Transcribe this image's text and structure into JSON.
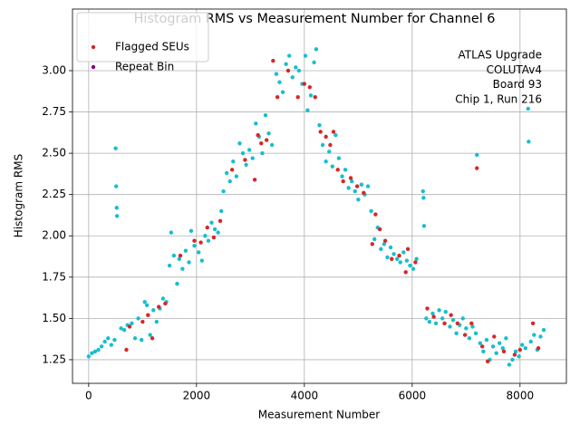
{
  "chart_data": {
    "type": "scatter",
    "title": "Histogram RMS vs Measurement Number for Channel 6",
    "xlabel": "Measurement Number",
    "ylabel": "Histogram RMS",
    "annotation": [
      "ATLAS Upgrade",
      "COLUTAv4",
      " Board 93",
      "Chip 1, Run 216"
    ],
    "xlim": [
      -300,
      8860
    ],
    "ylim": [
      1.107,
      3.373
    ],
    "xticks": [
      0,
      2000,
      4000,
      6000,
      8000
    ],
    "yticks": [
      1.25,
      {
        "value": 1.5,
        "label": "1.50"
      },
      1.75,
      {
        "value": 2.0,
        "label": "2.00"
      },
      2.25,
      {
        "value": 2.5,
        "label": "2.50"
      },
      2.75,
      {
        "value": 3.0,
        "label": "3.00"
      }
    ],
    "grid": true,
    "legend": "upper left",
    "series": [
      {
        "color": "#17becf",
        "x": [
          0,
          60,
          120,
          180,
          240,
          300,
          360,
          420,
          480,
          500,
          510,
          520,
          525,
          600,
          660,
          720,
          800,
          860,
          920,
          980,
          1040,
          1080,
          1140,
          1200,
          1260,
          1320,
          1380,
          1440,
          1500,
          1530,
          1580,
          1640,
          1680,
          1740,
          1800,
          1860,
          1900,
          1960,
          2040,
          2100,
          2160,
          2220,
          2280,
          2340,
          2400,
          2460,
          2500,
          2560,
          2620,
          2680,
          2740,
          2800,
          2860,
          2920,
          2980,
          3040,
          3100,
          3160,
          3220,
          3280,
          3340,
          3400,
          3480,
          3540,
          3600,
          3660,
          3720,
          3780,
          3840,
          3900,
          3960,
          4020,
          4060,
          4120,
          4180,
          4220,
          4280,
          4340,
          4400,
          4460,
          4520,
          4580,
          4640,
          4700,
          4760,
          4820,
          4880,
          4940,
          5000,
          5060,
          5120,
          5180,
          5240,
          5300,
          5360,
          5420,
          5480,
          5540,
          5600,
          5660,
          5720,
          5780,
          5840,
          5900,
          5960,
          6020,
          6080,
          6200,
          6210,
          6220,
          6260,
          6320,
          6380,
          6440,
          6500,
          6560,
          6620,
          6700,
          6760,
          6820,
          6880,
          6940,
          7000,
          7060,
          7120,
          7180,
          7200,
          7260,
          7320,
          7380,
          7440,
          7500,
          7560,
          7620,
          7680,
          7740,
          7800,
          7860,
          7920,
          7980,
          8040,
          8100,
          8150,
          8160,
          8200,
          8260,
          8320,
          8380,
          8440
        ],
        "values": [
          1.27,
          1.29,
          1.3,
          1.31,
          1.33,
          1.36,
          1.38,
          1.34,
          1.37,
          2.53,
          2.3,
          2.17,
          2.12,
          1.44,
          1.43,
          1.46,
          1.47,
          1.38,
          1.5,
          1.37,
          1.6,
          1.58,
          1.4,
          1.55,
          1.48,
          1.56,
          1.62,
          1.6,
          1.82,
          2.02,
          1.88,
          1.71,
          1.86,
          1.8,
          1.91,
          1.84,
          2.03,
          1.94,
          1.9,
          1.85,
          2.0,
          1.97,
          2.08,
          2.04,
          2.02,
          2.15,
          2.27,
          2.38,
          2.33,
          2.45,
          2.36,
          2.56,
          2.5,
          2.43,
          2.52,
          2.47,
          2.68,
          2.6,
          2.5,
          2.73,
          2.62,
          2.55,
          2.98,
          2.93,
          2.87,
          3.04,
          3.09,
          2.96,
          3.02,
          3.0,
          2.92,
          3.09,
          2.76,
          2.85,
          3.05,
          3.13,
          2.67,
          2.55,
          2.45,
          2.51,
          2.42,
          2.61,
          2.47,
          2.36,
          2.4,
          2.29,
          2.33,
          2.27,
          2.22,
          2.31,
          2.25,
          2.3,
          2.15,
          1.98,
          2.05,
          1.92,
          1.95,
          1.87,
          1.93,
          1.89,
          1.86,
          1.84,
          1.9,
          1.85,
          1.82,
          1.8,
          1.86,
          2.27,
          2.23,
          2.06,
          1.5,
          1.48,
          1.53,
          1.47,
          1.55,
          1.5,
          1.54,
          1.45,
          1.49,
          1.41,
          1.46,
          1.5,
          1.44,
          1.38,
          1.45,
          1.41,
          2.49,
          1.35,
          1.3,
          1.37,
          1.25,
          1.33,
          1.29,
          1.35,
          1.32,
          1.38,
          1.22,
          1.25,
          1.3,
          1.27,
          1.34,
          1.32,
          2.77,
          2.57,
          1.36,
          1.4,
          1.31,
          1.39,
          1.43
        ]
      },
      {
        "name": "Flagged SEUs",
        "color": "#d62728",
        "x": [
          700,
          760,
          1000,
          1100,
          1180,
          1300,
          1420,
          1700,
          1960,
          2080,
          2200,
          2320,
          2440,
          2660,
          2900,
          3080,
          3140,
          3200,
          3300,
          3420,
          3500,
          3700,
          3880,
          4000,
          4100,
          4200,
          4300,
          4400,
          4480,
          4540,
          4620,
          4720,
          4860,
          4980,
          5100,
          5260,
          5320,
          5400,
          5500,
          5620,
          5760,
          5880,
          5920,
          6060,
          6280,
          6400,
          6600,
          6720,
          6840,
          6980,
          7100,
          7200,
          7300,
          7400,
          7520,
          7700,
          7900,
          8000,
          8240,
          8340
        ],
        "values": [
          1.31,
          1.45,
          1.48,
          1.52,
          1.38,
          1.57,
          1.59,
          1.88,
          1.97,
          1.96,
          2.05,
          1.99,
          2.09,
          2.4,
          2.46,
          2.34,
          2.61,
          2.56,
          2.58,
          3.06,
          2.84,
          3.0,
          2.84,
          2.92,
          2.9,
          2.84,
          2.63,
          2.6,
          2.55,
          2.63,
          2.4,
          2.33,
          2.35,
          2.3,
          2.26,
          1.95,
          2.13,
          2.04,
          1.97,
          1.86,
          1.88,
          1.78,
          1.92,
          1.84,
          1.56,
          1.51,
          1.47,
          1.52,
          1.47,
          1.4,
          1.47,
          2.41,
          1.33,
          1.24,
          1.39,
          1.3,
          1.28,
          1.31,
          1.47,
          1.32
        ]
      },
      {
        "name": "Repeat Bin",
        "color": "#800080",
        "x": [],
        "values": []
      }
    ]
  }
}
